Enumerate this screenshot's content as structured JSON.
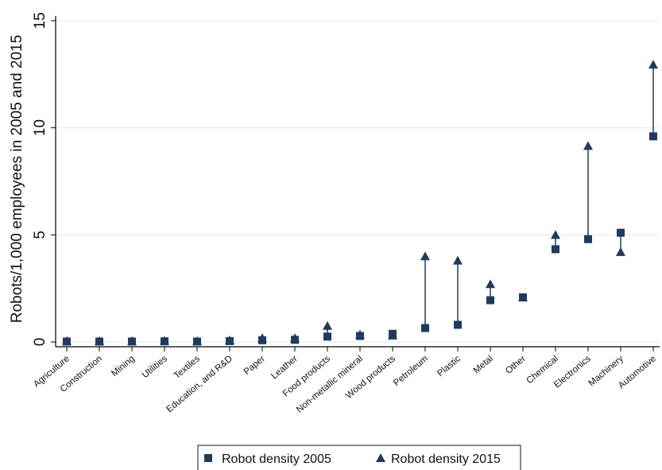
{
  "chart_data": {
    "type": "scatter",
    "title": "",
    "xlabel": "",
    "ylabel": "Robots/1,000 employees in 2005 and 2015",
    "ylim": [
      0,
      15
    ],
    "yticks": [
      0,
      5,
      10,
      15
    ],
    "grid": true,
    "legend_position": "bottom",
    "categories": [
      "Agriculture",
      "Construction",
      "Mining",
      "Utilities",
      "Textiles",
      "Education, and R&D",
      "Paper",
      "Leather",
      "Food products",
      "Non-metallic mineral",
      "Wood products",
      "Petroleum",
      "Plastic",
      "Metal",
      "Other",
      "Chemical",
      "Electronics",
      "Machinery",
      "Automotive"
    ],
    "series": [
      {
        "name": "Robot density 2005",
        "marker": "square",
        "values": [
          0.02,
          0.02,
          0.02,
          0.03,
          0.02,
          0.04,
          0.08,
          0.1,
          0.25,
          0.28,
          0.38,
          0.65,
          0.8,
          1.95,
          2.08,
          4.33,
          4.8,
          5.1,
          9.6
        ]
      },
      {
        "name": "Robot density 2015",
        "marker": "triangle",
        "values": [
          0.05,
          0.04,
          0.05,
          0.06,
          0.04,
          0.08,
          0.18,
          0.18,
          0.75,
          0.35,
          0.3,
          4.0,
          3.8,
          2.7,
          2.08,
          5.0,
          9.15,
          4.2,
          12.95
        ]
      }
    ],
    "colors": {
      "marker": "#1f3a5f",
      "grid": "#e1e8ee",
      "axis": "#000000"
    }
  }
}
